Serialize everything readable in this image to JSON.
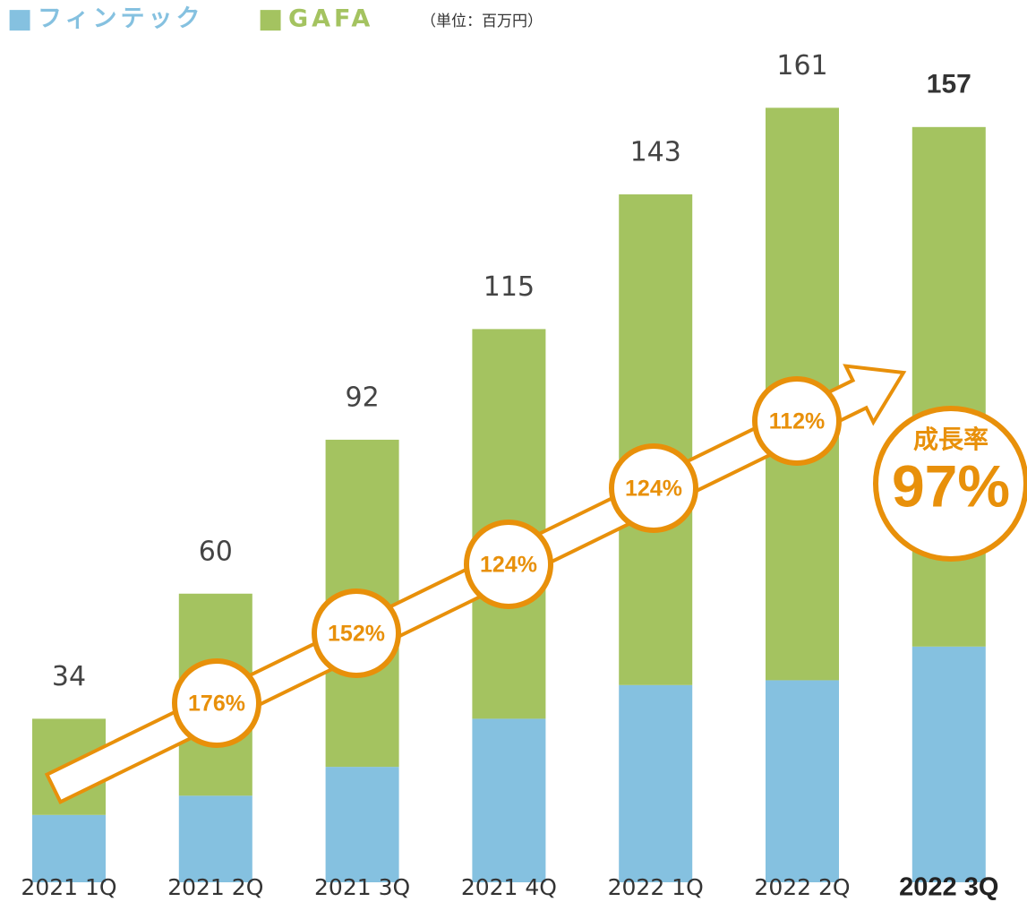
{
  "chart_data": {
    "type": "stacked_bar",
    "legend_mark": "■",
    "unit_note": "（単位：百万円）",
    "categories": [
      "2021 1Q",
      "2021 2Q",
      "2021 3Q",
      "2021 4Q",
      "2022 1Q",
      "2022 2Q",
      "2022 3Q"
    ],
    "series": [
      {
        "name": "フィンテック",
        "color": "#85c1e0",
        "values": [
          14,
          18,
          24,
          34,
          41,
          42,
          49
        ]
      },
      {
        "name": "GAFA",
        "color": "#a4c360",
        "values": [
          20,
          42,
          68,
          81,
          102,
          119,
          108
        ]
      }
    ],
    "totals": [
      34,
      60,
      92,
      115,
      143,
      161,
      157
    ],
    "ylim": [
      0,
      170
    ],
    "growth_title": "成長率",
    "growth_rates": [
      "176%",
      "152%",
      "124%",
      "124%",
      "112%",
      "97%"
    ],
    "accent_color": "#e8900a"
  }
}
